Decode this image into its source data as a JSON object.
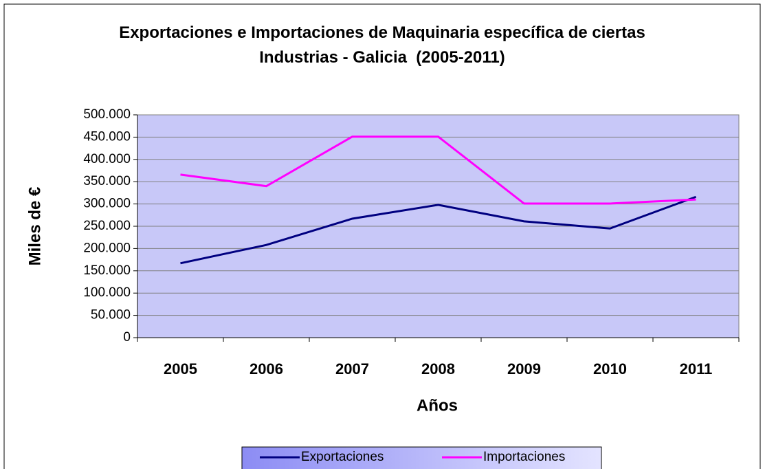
{
  "chart_data": {
    "type": "line",
    "title": "Exportaciones e Importaciones de Maquinaria específica de ciertas Industrias - Galicia  (2005-2011)",
    "x_label": "Años",
    "y_label": "Miles de €",
    "categories": [
      "2005",
      "2006",
      "2007",
      "2008",
      "2009",
      "2010",
      "2011"
    ],
    "series": [
      {
        "name": "Exportaciones",
        "color": "#000080",
        "values": [
          167000,
          208000,
          267000,
          298000,
          261000,
          245000,
          316000
        ]
      },
      {
        "name": "Importaciones",
        "color": "#ff00ff",
        "values": [
          366000,
          340000,
          451000,
          451000,
          301000,
          301000,
          310000
        ]
      }
    ],
    "ylim": [
      0,
      500000
    ],
    "yticks": [
      0,
      {
        "value": 50000,
        "label": "50.000"
      },
      {
        "value": 100000,
        "label": "100.000"
      },
      {
        "value": 150000,
        "label": "150.000"
      },
      {
        "value": 200000,
        "label": "200.000"
      },
      {
        "value": 250000,
        "label": "250.000"
      },
      {
        "value": 300000,
        "label": "300.000"
      },
      {
        "value": 350000,
        "label": "350.000"
      },
      {
        "value": 400000,
        "label": "400.000"
      },
      {
        "value": 450000,
        "label": "450.000"
      },
      {
        "value": 500000,
        "label": "500.000"
      }
    ],
    "grid": true,
    "plot_background": "#c8c8f8",
    "legend": "bottom"
  }
}
